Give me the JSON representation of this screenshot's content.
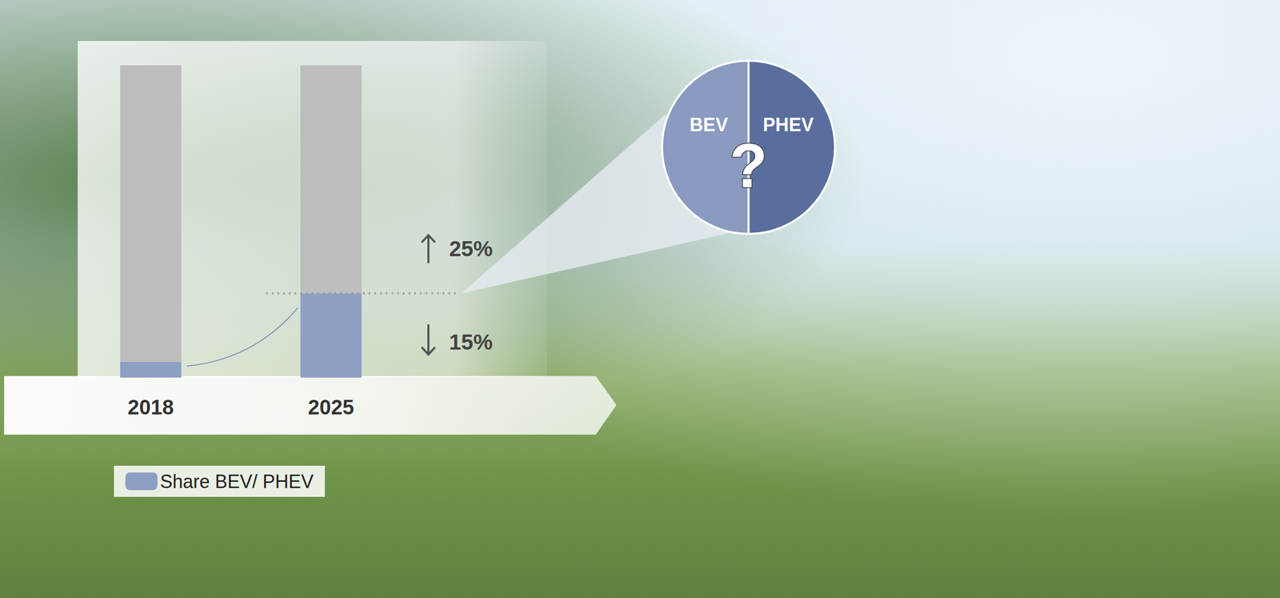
{
  "chart_data": {
    "type": "bar",
    "stacked": true,
    "categories": [
      "2018",
      "2025"
    ],
    "series": [
      {
        "name": "Share BEV/ PHEV",
        "color": "#8e9fc4",
        "values": [
          5,
          27
        ]
      },
      {
        "color": "#bdbdbd",
        "values": [
          95,
          73
        ]
      }
    ],
    "ylim": [
      0,
      100
    ],
    "tick_labels": "x",
    "legend": "bottom left",
    "annotations": [
      {
        "text": "25%",
        "arrow": "up"
      },
      {
        "text": "15%",
        "arrow": "down"
      }
    ],
    "inset": {
      "type": "pie",
      "labels": [
        "BEV",
        "PHEV"
      ],
      "values": [
        50,
        50
      ],
      "colors": [
        "#8a9ac0",
        "#5a6e9e"
      ],
      "center_text": "?"
    }
  }
}
